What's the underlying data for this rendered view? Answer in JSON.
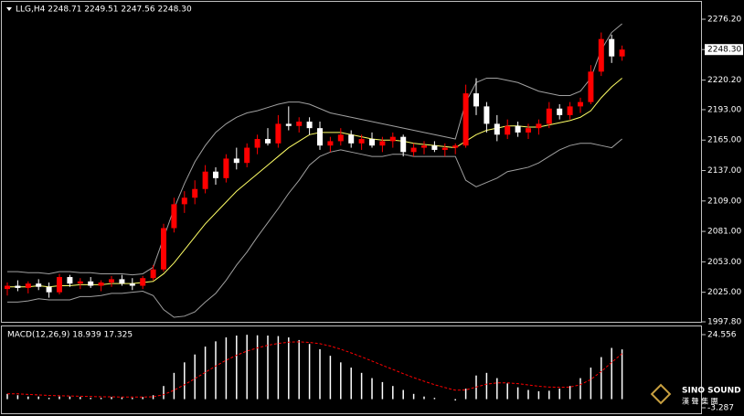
{
  "chart_data": [
    {
      "type": "candlestick",
      "title": "LLG,H4  2248.71 2249.51 2247.56 2248.30",
      "up_color": "#ff0000",
      "down_color": "#ffffff",
      "open": [
        2028,
        2031,
        2029,
        2033,
        2030,
        2025,
        2039,
        2033,
        2035,
        2031,
        2034,
        2037,
        2033,
        2031,
        2038,
        2046,
        2084,
        2106,
        2112,
        2120,
        2136,
        2130,
        2148,
        2144,
        2158,
        2166,
        2162,
        2180,
        2178,
        2182,
        2176,
        2160,
        2164,
        2170,
        2162,
        2166,
        2160,
        2164,
        2168,
        2154,
        2158,
        2160,
        2156,
        2158,
        2160,
        2208,
        2196,
        2180,
        2170,
        2178,
        2172,
        2176,
        2180,
        2194,
        2188,
        2196,
        2200,
        2228,
        2258,
        2242
      ],
      "high": [
        2034,
        2036,
        2035,
        2037,
        2034,
        2042,
        2041,
        2038,
        2039,
        2036,
        2040,
        2041,
        2038,
        2040,
        2050,
        2088,
        2112,
        2118,
        2128,
        2142,
        2140,
        2152,
        2158,
        2162,
        2170,
        2176,
        2188,
        2196,
        2186,
        2186,
        2182,
        2168,
        2176,
        2174,
        2170,
        2172,
        2168,
        2172,
        2170,
        2162,
        2164,
        2164,
        2162,
        2162,
        2216,
        2222,
        2200,
        2188,
        2184,
        2182,
        2180,
        2184,
        2200,
        2198,
        2200,
        2204,
        2234,
        2264,
        2262,
        2252
      ],
      "low": [
        2022,
        2026,
        2024,
        2027,
        2020,
        2023,
        2030,
        2028,
        2029,
        2026,
        2030,
        2031,
        2027,
        2028,
        2036,
        2044,
        2080,
        2098,
        2106,
        2116,
        2124,
        2126,
        2138,
        2140,
        2152,
        2160,
        2158,
        2174,
        2172,
        2170,
        2156,
        2154,
        2160,
        2158,
        2156,
        2158,
        2154,
        2158,
        2150,
        2150,
        2152,
        2154,
        2150,
        2152,
        2158,
        2188,
        2172,
        2164,
        2166,
        2168,
        2166,
        2170,
        2176,
        2184,
        2184,
        2190,
        2198,
        2224,
        2236,
        2238
      ],
      "close": [
        2031,
        2029,
        2033,
        2030,
        2025,
        2039,
        2033,
        2035,
        2031,
        2034,
        2037,
        2033,
        2031,
        2038,
        2046,
        2084,
        2106,
        2112,
        2120,
        2136,
        2130,
        2148,
        2144,
        2158,
        2166,
        2162,
        2180,
        2178,
        2182,
        2176,
        2160,
        2164,
        2170,
        2162,
        2166,
        2160,
        2164,
        2168,
        2154,
        2158,
        2160,
        2156,
        2158,
        2160,
        2208,
        2196,
        2180,
        2170,
        2178,
        2172,
        2176,
        2180,
        2194,
        2188,
        2196,
        2200,
        2228,
        2258,
        2242,
        2248.3
      ],
      "overlays": [
        {
          "color": "#a0a0a0",
          "values": [
            2044,
            2044,
            2043,
            2043,
            2042,
            2044,
            2044,
            2043,
            2043,
            2042,
            2042,
            2042,
            2041,
            2042,
            2048,
            2075,
            2102,
            2125,
            2145,
            2160,
            2172,
            2180,
            2186,
            2190,
            2192,
            2195,
            2198,
            2200,
            2200,
            2198,
            2194,
            2190,
            2188,
            2186,
            2184,
            2182,
            2180,
            2178,
            2176,
            2174,
            2172,
            2170,
            2168,
            2166,
            2200,
            2218,
            2222,
            2222,
            2220,
            2218,
            2214,
            2210,
            2208,
            2206,
            2206,
            2210,
            2222,
            2248,
            2264,
            2272
          ]
        },
        {
          "color": "#ffff66",
          "values": [
            2030,
            2030,
            2030,
            2031,
            2030,
            2031,
            2031,
            2032,
            2032,
            2032,
            2033,
            2033,
            2033,
            2034,
            2035,
            2042,
            2052,
            2064,
            2076,
            2088,
            2098,
            2108,
            2118,
            2126,
            2134,
            2142,
            2150,
            2158,
            2164,
            2170,
            2172,
            2172,
            2172,
            2170,
            2168,
            2166,
            2165,
            2165,
            2164,
            2162,
            2161,
            2160,
            2159,
            2158,
            2164,
            2170,
            2174,
            2176,
            2178,
            2178,
            2177,
            2177,
            2179,
            2181,
            2183,
            2186,
            2192,
            2204,
            2214,
            2222
          ]
        },
        {
          "color": "#a0a0a0",
          "values": [
            2016,
            2016,
            2017,
            2019,
            2018,
            2018,
            2018,
            2021,
            2021,
            2022,
            2024,
            2024,
            2025,
            2026,
            2022,
            2009,
            2002,
            2003,
            2007,
            2016,
            2024,
            2036,
            2050,
            2062,
            2076,
            2089,
            2102,
            2116,
            2128,
            2142,
            2150,
            2154,
            2156,
            2154,
            2152,
            2150,
            2150,
            2152,
            2152,
            2150,
            2150,
            2150,
            2150,
            2150,
            2128,
            2122,
            2126,
            2130,
            2136,
            2138,
            2140,
            2144,
            2150,
            2156,
            2160,
            2162,
            2162,
            2160,
            2158,
            2166
          ]
        }
      ],
      "ylim": [
        1997.8,
        2293.9
      ],
      "yticks": [
        {
          "value": 2276.2,
          "label": "2276.20"
        },
        {
          "value": 2220.2,
          "label": "2220.20"
        },
        {
          "value": 2193,
          "label": "2193.00"
        },
        {
          "value": 2165,
          "label": "2165.00"
        },
        {
          "value": 2137,
          "label": "2137.00"
        },
        {
          "value": 2109,
          "label": "2109.00"
        },
        {
          "value": 2081,
          "label": "2081.00"
        },
        {
          "value": 2053,
          "label": "2053.00"
        },
        {
          "value": 2025,
          "label": "2025.00"
        },
        {
          "value": 1997.8,
          "label": "1997.80"
        }
      ],
      "last_price": {
        "value": 2248.3,
        "label": "2248.30"
      }
    },
    {
      "type": "macd",
      "title": "MACD(12,26,9) 18.939 17.325",
      "histogram_color": "#ffffff",
      "signal_color": "#ff0000",
      "histogram": [
        2,
        1.5,
        1,
        1,
        0.5,
        1,
        1,
        0.8,
        0.5,
        0.5,
        0.8,
        0.7,
        0.5,
        0.8,
        1.5,
        5,
        10,
        14,
        17,
        20,
        22,
        23.5,
        24.2,
        24.5,
        24.3,
        24.2,
        24,
        23.5,
        22.5,
        21,
        19,
        16.5,
        14,
        12,
        10,
        8,
        6.5,
        5,
        3.5,
        2,
        1,
        0.5,
        0,
        -0.5,
        4,
        9,
        10,
        8,
        6,
        4.5,
        3.5,
        3,
        3.2,
        4,
        5,
        8,
        12,
        16,
        19.5,
        18.939
      ],
      "signal": [
        2,
        2,
        1.8,
        1.6,
        1.4,
        1.3,
        1.2,
        1.1,
        1,
        0.9,
        0.9,
        0.8,
        0.8,
        0.8,
        0.9,
        1.7,
        3.4,
        5.5,
        7.8,
        10.2,
        12.6,
        14.8,
        16.7,
        18.3,
        19.5,
        20.5,
        21.2,
        21.7,
        21.8,
        21.6,
        21.1,
        20.2,
        19,
        17.6,
        16.1,
        14.5,
        12.9,
        11.3,
        9.7,
        8.2,
        6.8,
        5.5,
        4.4,
        3.4,
        3.5,
        4.6,
        5.7,
        6.2,
        6.2,
        5.9,
        5.4,
        4.9,
        4.6,
        4.5,
        4.6,
        5.5,
        7.5,
        10.5,
        14,
        17.325
      ],
      "ylim": [
        -3.287,
        24.556
      ],
      "yticks": [
        24.556,
        -3.287
      ]
    }
  ],
  "logo": {
    "name": "SINO SOUND",
    "chinese": "漢 聲 集 團"
  }
}
